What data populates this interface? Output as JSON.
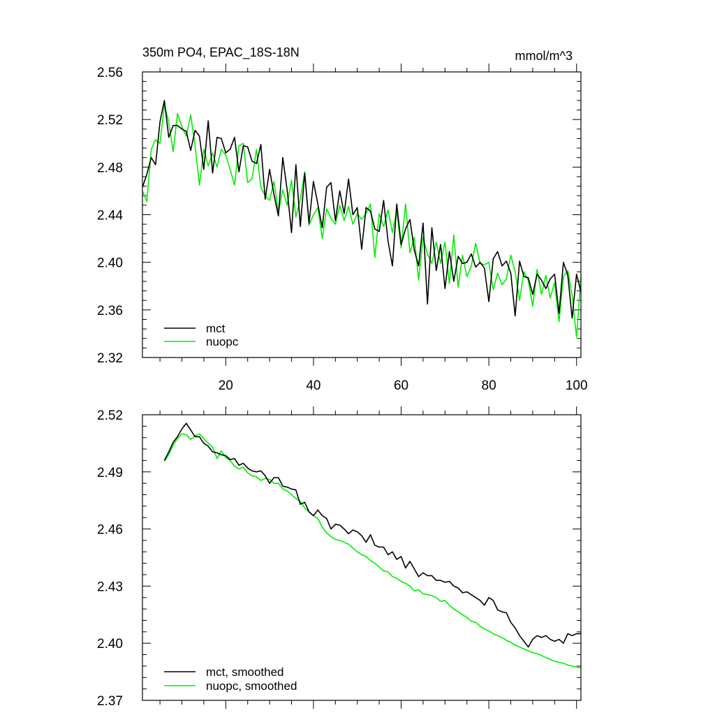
{
  "chart_data": [
    {
      "type": "line",
      "title": "350m PO4, EPAC_18S-18N",
      "units": "mmol/m^3",
      "xlim": [
        1,
        101
      ],
      "ylim": [
        2.32,
        2.56
      ],
      "xticks": [
        20,
        40,
        60,
        80,
        100
      ],
      "yticks": [
        2.32,
        2.36,
        2.4,
        2.44,
        2.48,
        2.52,
        2.56
      ],
      "ytick_labels": [
        "2.32",
        "2.36",
        "2.40",
        "2.44",
        "2.48",
        "2.52",
        "2.56"
      ],
      "legend_position": "bottom-left",
      "series": [
        {
          "name": "mct",
          "color": "#000000",
          "x": [
            1,
            2,
            3,
            4,
            5,
            6,
            7,
            8,
            9,
            10,
            11,
            12,
            13,
            14,
            15,
            16,
            17,
            18,
            19,
            20,
            21,
            22,
            23,
            24,
            25,
            26,
            27,
            28,
            29,
            30,
            31,
            32,
            33,
            34,
            35,
            36,
            37,
            38,
            39,
            40,
            41,
            42,
            43,
            44,
            45,
            46,
            47,
            48,
            49,
            50,
            51,
            52,
            53,
            54,
            55,
            56,
            57,
            58,
            59,
            60,
            61,
            62,
            63,
            64,
            65,
            66,
            67,
            68,
            69,
            70,
            71,
            72,
            73,
            74,
            75,
            76,
            77,
            78,
            79,
            80,
            81,
            82,
            83,
            84,
            85,
            86,
            87,
            88,
            89,
            90,
            91,
            92,
            93,
            94,
            95,
            96,
            97,
            98,
            99,
            100,
            101
          ],
          "values": [
            2.463,
            2.474,
            2.488,
            2.482,
            2.518,
            2.536,
            2.505,
            2.515,
            2.515,
            2.512,
            2.51,
            2.494,
            2.511,
            2.506,
            2.478,
            2.519,
            2.475,
            2.505,
            2.504,
            2.492,
            2.495,
            2.505,
            2.476,
            2.498,
            2.497,
            2.485,
            2.483,
            2.499,
            2.453,
            2.478,
            2.457,
            2.439,
            2.488,
            2.461,
            2.425,
            2.482,
            2.43,
            2.475,
            2.433,
            2.468,
            2.449,
            2.429,
            2.463,
            2.467,
            2.435,
            2.46,
            2.441,
            2.47,
            2.44,
            2.446,
            2.411,
            2.446,
            2.443,
            2.428,
            2.426,
            2.452,
            2.418,
            2.397,
            2.449,
            2.415,
            2.428,
            2.436,
            2.41,
            2.397,
            2.433,
            2.365,
            2.429,
            2.393,
            2.415,
            2.378,
            2.409,
            2.384,
            2.405,
            2.399,
            2.4,
            2.407,
            2.396,
            2.4,
            2.395,
            2.367,
            2.403,
            2.409,
            2.397,
            2.401,
            2.391,
            2.355,
            2.401,
            2.388,
            2.387,
            2.373,
            2.39,
            2.385,
            2.378,
            2.386,
            2.39,
            2.357,
            2.4,
            2.389,
            2.353,
            2.39,
            2.375
          ]
        },
        {
          "name": "nuopc",
          "color": "#00ee00",
          "x": [
            1,
            2,
            3,
            4,
            5,
            6,
            7,
            8,
            9,
            10,
            11,
            12,
            13,
            14,
            15,
            16,
            17,
            18,
            19,
            20,
            21,
            22,
            23,
            24,
            25,
            26,
            27,
            28,
            29,
            30,
            31,
            32,
            33,
            34,
            35,
            36,
            37,
            38,
            39,
            40,
            41,
            42,
            43,
            44,
            45,
            46,
            47,
            48,
            49,
            50,
            51,
            52,
            53,
            54,
            55,
            56,
            57,
            58,
            59,
            60,
            61,
            62,
            63,
            64,
            65,
            66,
            67,
            68,
            69,
            70,
            71,
            72,
            73,
            74,
            75,
            76,
            77,
            78,
            79,
            80,
            81,
            82,
            83,
            84,
            85,
            86,
            87,
            88,
            89,
            90,
            91,
            92,
            93,
            94,
            95,
            96,
            97,
            98,
            99,
            100,
            101
          ],
          "values": [
            2.46,
            2.451,
            2.495,
            2.503,
            2.5,
            2.532,
            2.518,
            2.493,
            2.525,
            2.514,
            2.506,
            2.524,
            2.498,
            2.465,
            2.495,
            2.481,
            2.492,
            2.48,
            2.495,
            2.49,
            2.478,
            2.465,
            2.498,
            2.5,
            2.467,
            2.47,
            2.495,
            2.463,
            2.456,
            2.452,
            2.468,
            2.442,
            2.461,
            2.448,
            2.469,
            2.438,
            2.453,
            2.476,
            2.431,
            2.44,
            2.446,
            2.42,
            2.445,
            2.437,
            2.432,
            2.448,
            2.435,
            2.447,
            2.432,
            2.441,
            2.436,
            2.441,
            2.449,
            2.404,
            2.441,
            2.43,
            2.444,
            2.425,
            2.443,
            2.412,
            2.449,
            2.408,
            2.421,
            2.385,
            2.421,
            2.407,
            2.399,
            2.417,
            2.399,
            2.417,
            2.382,
            2.423,
            2.379,
            2.406,
            2.388,
            2.397,
            2.416,
            2.399,
            2.398,
            2.4,
            2.377,
            2.391,
            2.381,
            2.386,
            2.406,
            2.392,
            2.368,
            2.392,
            2.385,
            2.363,
            2.394,
            2.373,
            2.389,
            2.37,
            2.383,
            2.35,
            2.388,
            2.393,
            2.372,
            2.337,
            2.388
          ]
        }
      ]
    },
    {
      "type": "line",
      "xlim": [
        1,
        101
      ],
      "ylim": [
        2.37,
        2.52
      ],
      "xticks": [
        20,
        40,
        60,
        80,
        100
      ],
      "yticks": [
        2.37,
        2.4,
        2.43,
        2.46,
        2.49,
        2.52
      ],
      "ytick_labels": [
        "2.37",
        "2.40",
        "2.43",
        "2.46",
        "2.49",
        "2.52"
      ],
      "legend_position": "bottom-left",
      "series": [
        {
          "name": "mct, smoothed",
          "color": "#000000",
          "x": [
            6,
            7,
            8,
            9,
            10,
            11,
            12,
            13,
            14,
            15,
            16,
            17,
            18,
            19,
            20,
            21,
            22,
            23,
            24,
            25,
            26,
            27,
            28,
            29,
            30,
            31,
            32,
            33,
            34,
            35,
            36,
            37,
            38,
            39,
            40,
            41,
            42,
            43,
            44,
            45,
            46,
            47,
            48,
            49,
            50,
            51,
            52,
            53,
            54,
            55,
            56,
            57,
            58,
            59,
            60,
            61,
            62,
            63,
            64,
            65,
            66,
            67,
            68,
            69,
            70,
            71,
            72,
            73,
            74,
            75,
            76,
            77,
            78,
            79,
            80,
            81,
            82,
            83,
            84,
            85,
            86,
            87,
            88,
            89,
            90,
            91,
            92,
            93,
            94,
            95,
            96,
            97,
            98,
            99,
            100,
            101
          ],
          "values": [
            2.496,
            2.5005,
            2.5055,
            2.5085,
            2.5125,
            2.5155,
            2.512,
            2.5085,
            2.5085,
            2.505,
            2.5035,
            2.5005,
            2.5,
            2.499,
            2.4985,
            2.4965,
            2.497,
            2.4935,
            2.4945,
            2.492,
            2.4905,
            2.49,
            2.4905,
            2.488,
            2.484,
            2.487,
            2.487,
            2.4825,
            2.482,
            2.481,
            2.4805,
            2.473,
            2.474,
            2.469,
            2.467,
            2.47,
            2.467,
            2.4655,
            2.46,
            2.4625,
            2.462,
            2.46,
            2.4575,
            2.4595,
            2.4585,
            2.4565,
            2.453,
            2.457,
            2.4515,
            2.4505,
            2.4505,
            2.4465,
            2.448,
            2.444,
            2.4455,
            2.4395,
            2.443,
            2.439,
            2.435,
            2.437,
            2.4355,
            2.4355,
            2.433,
            2.433,
            2.432,
            2.4325,
            2.43,
            2.429,
            2.4265,
            2.427,
            2.4255,
            2.424,
            2.4225,
            2.42,
            2.424,
            2.4225,
            2.4175,
            2.4165,
            2.416,
            2.411,
            2.408,
            2.404,
            2.401,
            2.398,
            2.402,
            2.404,
            2.403,
            2.404,
            2.402,
            2.401,
            2.402,
            2.4,
            2.405,
            2.404,
            2.405,
            2.405
          ]
        },
        {
          "name": "nuopc, smoothed",
          "color": "#00ee00",
          "x": [
            6,
            7,
            8,
            9,
            10,
            11,
            12,
            13,
            14,
            15,
            16,
            17,
            18,
            19,
            20,
            21,
            22,
            23,
            24,
            25,
            26,
            27,
            28,
            29,
            30,
            31,
            32,
            33,
            34,
            35,
            36,
            37,
            38,
            39,
            40,
            41,
            42,
            43,
            44,
            45,
            46,
            47,
            48,
            49,
            50,
            51,
            52,
            53,
            54,
            55,
            56,
            57,
            58,
            59,
            60,
            61,
            62,
            63,
            64,
            65,
            66,
            67,
            68,
            69,
            70,
            71,
            72,
            73,
            74,
            75,
            76,
            77,
            78,
            79,
            80,
            81,
            82,
            83,
            84,
            85,
            86,
            87,
            88,
            89,
            90,
            91,
            92,
            93,
            94,
            95,
            96,
            97,
            98,
            99,
            100,
            101
          ],
          "values": [
            2.4955,
            2.499,
            2.504,
            2.5075,
            2.51,
            2.5095,
            2.507,
            2.509,
            2.51,
            2.5075,
            2.505,
            2.503,
            2.497,
            2.501,
            2.4975,
            2.496,
            2.493,
            2.4915,
            2.4925,
            2.4895,
            2.488,
            2.4875,
            2.4855,
            2.4865,
            2.486,
            2.484,
            2.484,
            2.481,
            2.48,
            2.478,
            2.476,
            2.4745,
            2.471,
            2.469,
            2.467,
            2.4655,
            2.461,
            2.458,
            2.456,
            2.4545,
            2.454,
            2.453,
            2.452,
            2.45,
            2.448,
            2.4465,
            2.4455,
            2.4435,
            2.442,
            2.44,
            2.438,
            2.4375,
            2.435,
            2.434,
            2.4325,
            2.4315,
            2.43,
            2.4275,
            2.428,
            2.426,
            2.4255,
            2.425,
            2.424,
            2.422,
            2.4225,
            2.42,
            2.418,
            2.4165,
            2.415,
            2.4135,
            2.4115,
            2.411,
            2.409,
            2.4075,
            2.4065,
            2.405,
            2.404,
            2.403,
            2.4015,
            2.4005,
            2.399,
            2.398,
            2.397,
            2.396,
            2.395,
            2.3945,
            2.3935,
            2.3925,
            2.3915,
            2.3905,
            2.39,
            2.3895,
            2.3885,
            2.388,
            2.3875,
            2.387
          ]
        }
      ]
    }
  ]
}
